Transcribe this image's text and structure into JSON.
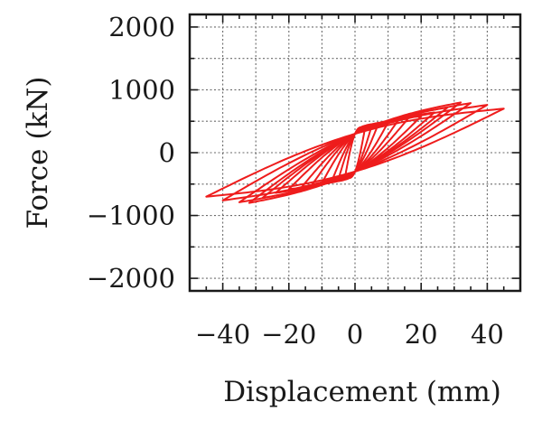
{
  "chart_data": {
    "type": "line",
    "title": "",
    "xlabel": "Displacement (mm)",
    "ylabel": "Force (kN)",
    "xlim": [
      -50,
      50
    ],
    "ylim": [
      -2200,
      2200
    ],
    "xticks": [
      -40,
      -20,
      0,
      20,
      40
    ],
    "xtick_labels": [
      "−40",
      "−20",
      "0",
      "20",
      "40"
    ],
    "yticks": [
      2000,
      1000,
      0,
      -1000,
      -2000
    ],
    "ytick_labels": [
      "2000",
      "1000",
      "0",
      "−1000",
      "−2000"
    ],
    "grid": true,
    "grid_style": "dotted",
    "legend": "none",
    "series_color": "#ee1c1c",
    "series": [
      {
        "name": "",
        "description": "hysteresis loops, increasing displacement amplitude",
        "loops": [
          {
            "amplitude": 3,
            "peak_force": 380
          },
          {
            "amplitude": 5,
            "peak_force": 420
          },
          {
            "amplitude": 7,
            "peak_force": 450
          },
          {
            "amplitude": 10,
            "peak_force": 480
          },
          {
            "amplitude": 13,
            "peak_force": 510
          },
          {
            "amplitude": 16,
            "peak_force": 540
          },
          {
            "amplitude": 20,
            "peak_force": 580
          },
          {
            "amplitude": 24,
            "peak_force": 640
          },
          {
            "amplitude": 28,
            "peak_force": 720
          },
          {
            "amplitude": 32,
            "peak_force": 800
          },
          {
            "amplitude": 35,
            "peak_force": 790
          },
          {
            "amplitude": 40,
            "peak_force": 760
          },
          {
            "amplitude": 45,
            "peak_force": 700
          }
        ]
      }
    ]
  }
}
